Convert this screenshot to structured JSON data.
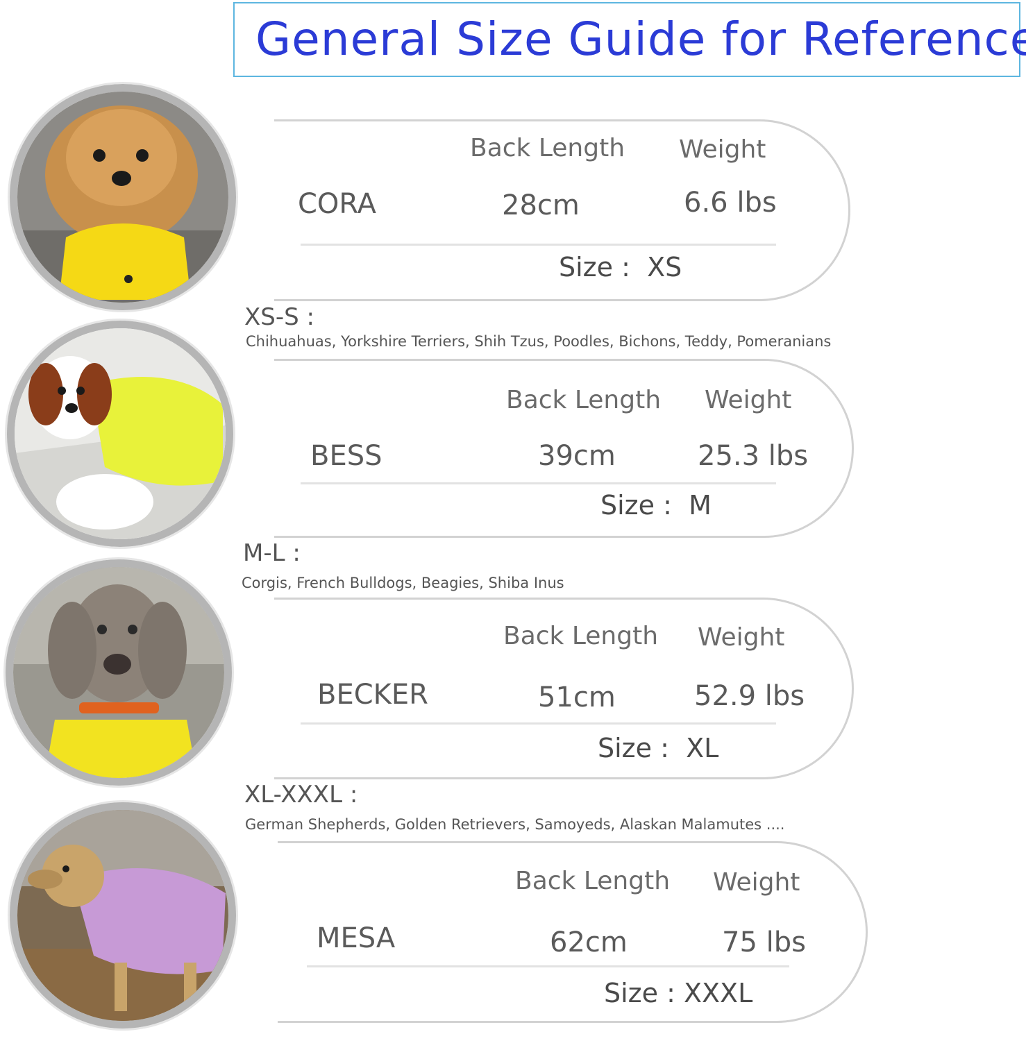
{
  "title": "General Size Guide for Reference",
  "columns": {
    "back_length": "Back Length",
    "weight": "Weight"
  },
  "size_prefix": "Size :",
  "cards": [
    {
      "name": "CORA",
      "back_length": "28cm",
      "weight": "6.6 lbs",
      "size": "XS",
      "coat_color": "#f5d915"
    },
    {
      "name": "BESS",
      "back_length": "39cm",
      "weight": "25.3 lbs",
      "size": "M",
      "coat_color": "#e8f23a"
    },
    {
      "name": "BECKER",
      "back_length": "51cm",
      "weight": "52.9 lbs",
      "size": "XL",
      "coat_color": "#f2e320"
    },
    {
      "name": "MESA",
      "back_length": "62cm",
      "weight": "75 lbs",
      "size": "XXXL",
      "coat_color": "#c79ad6"
    }
  ],
  "groups": [
    {
      "label": "XS-S :",
      "breeds": "Chihuahuas, Yorkshire Terriers, Shih Tzus, Poodles, Bichons, Teddy, Pomeranians"
    },
    {
      "label": "M-L :",
      "breeds": "Corgis, French Bulldogs, Beagies, Shiba Inus"
    },
    {
      "label": "XL-XXXL :",
      "breeds": "German Shepherds, Golden Retrievers, Samoyeds, Alaskan Malamutes ...."
    }
  ],
  "colors": {
    "title": "#2b3bd6",
    "title_border": "#5db6e0",
    "card_border": "#d2d2d2",
    "avatar_ring": "#b5b5b5"
  }
}
